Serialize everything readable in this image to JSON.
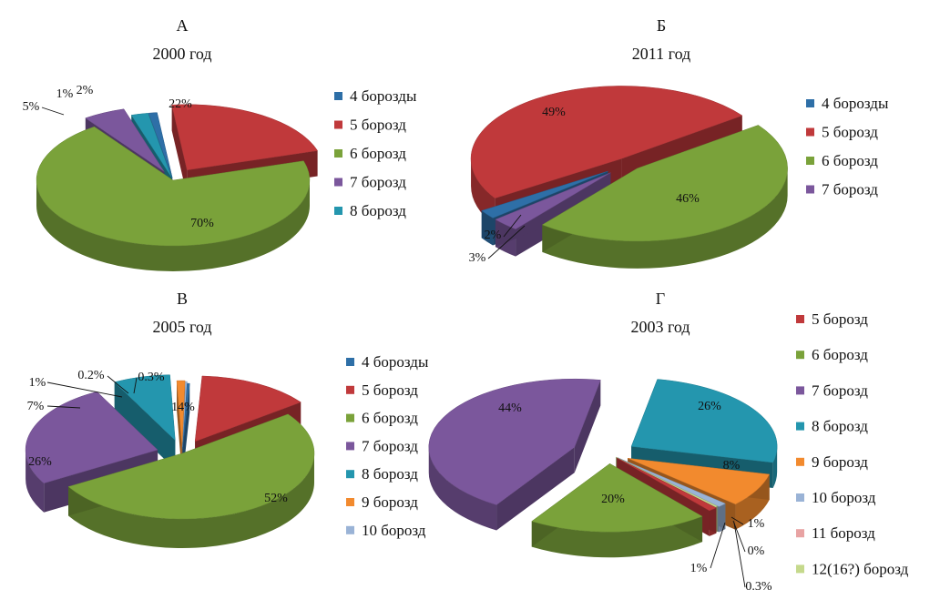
{
  "colors": {
    "blue": "#2E6FA7",
    "red": "#C0393B",
    "green": "#7AA23A",
    "purple": "#7B579C",
    "teal": "#2496AE",
    "orange": "#F28A2E",
    "lightblue": "#9AB3D6",
    "pink": "#E8A3A3",
    "lightgreen": "#C5D98C"
  },
  "chart_data": [
    {
      "type": "pie",
      "title": "А",
      "subtitle": "2000 год",
      "categories": [
        "4 борозды",
        "5 борозд",
        "6 борозд",
        "7 борозд",
        "8 борозд"
      ],
      "values": [
        1,
        22,
        70,
        5,
        2
      ],
      "data_labels": [
        "1%",
        "22%",
        "70%",
        "5%",
        "2%"
      ],
      "legend": [
        "4 борозды",
        "5 борозд",
        "6 борозд",
        "7 борозд",
        "8 борозд"
      ],
      "legend_position": "right"
    },
    {
      "type": "pie",
      "title": "Б",
      "subtitle": "2011 год",
      "categories": [
        "4 борозды",
        "5 борозд",
        "6 борозд",
        "7 борозд"
      ],
      "values": [
        2,
        49,
        46,
        3
      ],
      "data_labels": [
        "2%",
        "49%",
        "46%",
        "3%"
      ],
      "legend": [
        "4 борозды",
        "5 борозд",
        "6 борозд",
        "7 борозд"
      ],
      "legend_position": "right"
    },
    {
      "type": "pie",
      "title": "В",
      "subtitle": "2005 год",
      "categories": [
        "4 борозды",
        "5 борозд",
        "6 борозд",
        "7 борозд",
        "8 борозд",
        "9 борозд",
        "10 борозд"
      ],
      "values": [
        0.3,
        14,
        52,
        26,
        7,
        1,
        0.2
      ],
      "data_labels": [
        "0.3%",
        "14%",
        "52%",
        "26%",
        "7%",
        "1%",
        "0.2%"
      ],
      "legend": [
        "4 борозды",
        "5 борозд",
        "6 борозд",
        "7 борозд",
        "8 борозд",
        "9 борозд",
        "10 борозд"
      ],
      "legend_position": "right"
    },
    {
      "type": "pie",
      "title": "Г",
      "subtitle": "2003 год",
      "categories": [
        "5 борозд",
        "6 борозд",
        "7 борозд",
        "8 борозд",
        "9 борозд",
        "10 борозд",
        "11 борозд",
        "12(16?) борозд"
      ],
      "values": [
        1,
        20,
        44,
        26,
        8,
        1,
        0,
        0.3
      ],
      "data_labels": [
        "1%",
        "20%",
        "44%",
        "26%",
        "8%",
        "1%",
        "0%",
        "0.3%"
      ],
      "legend": [
        "5 борозд",
        "6 борозд",
        "7 борозд",
        "8 борозд",
        "9 борозд",
        "10 борозд",
        "11 борозд",
        "12(16?) борозд"
      ],
      "legend_position": "right"
    }
  ]
}
